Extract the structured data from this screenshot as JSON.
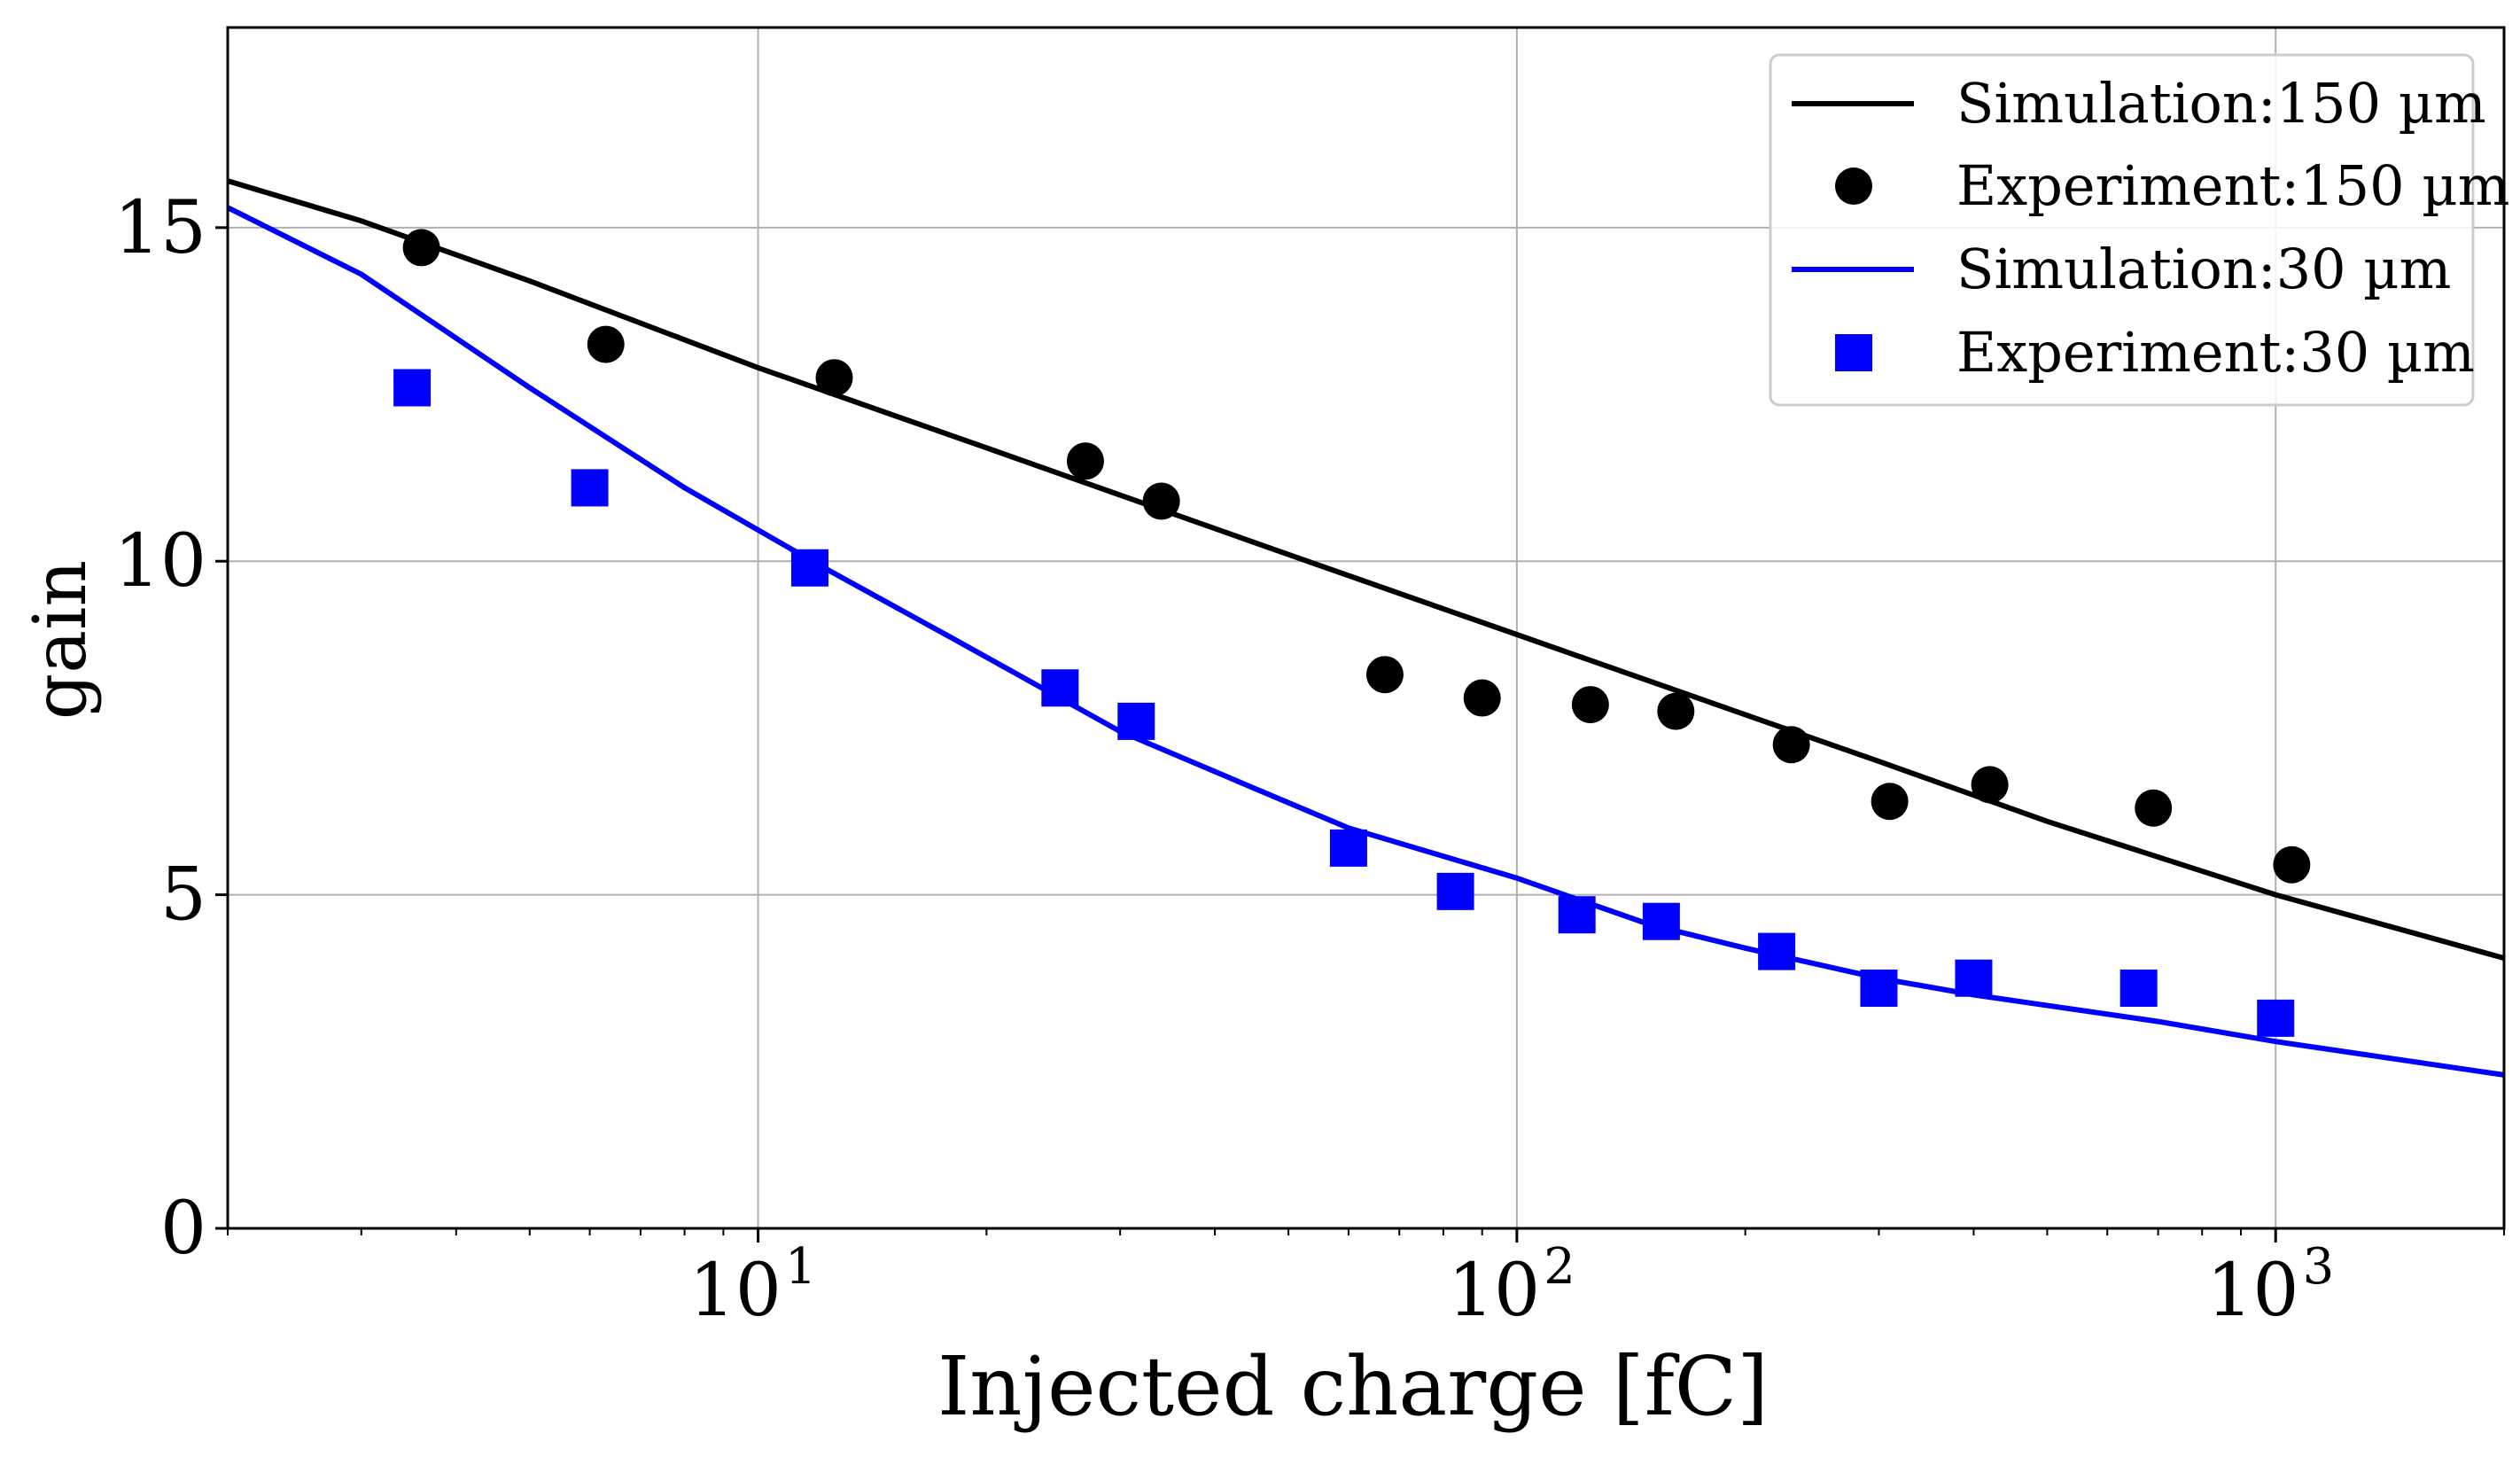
{
  "chart_data": {
    "type": "scatter",
    "title": "",
    "xlabel": "Injected charge [fC]",
    "ylabel": "gain",
    "xscale": "log",
    "xlim": [
      2,
      2000
    ],
    "ylim": [
      0,
      18
    ],
    "grid": true,
    "legend_position": "top-right",
    "x_ticks": [
      {
        "value": 10,
        "base": "10",
        "exp": "1"
      },
      {
        "value": 100,
        "base": "10",
        "exp": "2"
      },
      {
        "value": 1000,
        "base": "10",
        "exp": "3"
      }
    ],
    "y_ticks": [
      0,
      5,
      10,
      15
    ],
    "series": [
      {
        "name": "Simulation:150 µm",
        "kind": "line",
        "color": "#000000",
        "x": [
          2,
          3,
          5,
          10,
          20,
          50,
          100,
          200,
          300,
          500,
          1000,
          2000
        ],
        "y": [
          15.7,
          15.1,
          14.2,
          12.9,
          11.7,
          10.1,
          8.9,
          7.7,
          7.0,
          6.1,
          5.0,
          4.05
        ]
      },
      {
        "name": "Experiment:150 µm",
        "kind": "marker",
        "marker": "circle",
        "color": "#000000",
        "x": [
          3.6,
          6.3,
          12.6,
          27,
          34,
          67,
          90,
          125,
          162,
          230,
          310,
          420,
          690,
          1050
        ],
        "y": [
          14.7,
          13.25,
          12.75,
          11.5,
          10.9,
          8.3,
          7.95,
          7.85,
          7.75,
          7.25,
          6.4,
          6.65,
          6.3,
          5.45
        ]
      },
      {
        "name": "Simulation:30 µm",
        "kind": "line",
        "color": "#0000ff",
        "x": [
          2,
          3,
          5,
          8,
          12,
          18,
          30,
          45,
          60,
          100,
          150,
          200,
          300,
          400,
          700,
          1000,
          2000
        ],
        "y": [
          15.3,
          14.3,
          12.6,
          11.1,
          9.95,
          8.85,
          7.45,
          6.6,
          6.0,
          5.25,
          4.55,
          4.2,
          3.75,
          3.5,
          3.1,
          2.8,
          2.3
        ]
      },
      {
        "name": "Experiment:30 µm",
        "kind": "marker",
        "marker": "square",
        "color": "#0000ff",
        "x": [
          3.5,
          6.0,
          11.7,
          25,
          31.5,
          60,
          83,
          120,
          155,
          220,
          300,
          400,
          660,
          1000
        ],
        "y": [
          12.6,
          11.1,
          9.9,
          8.1,
          7.6,
          5.7,
          5.05,
          4.7,
          4.6,
          4.15,
          3.6,
          3.75,
          3.6,
          3.15
        ]
      }
    ]
  }
}
